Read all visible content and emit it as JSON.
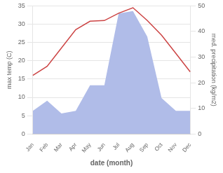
{
  "chart_data": {
    "type": "line",
    "categories": [
      "Jan",
      "Feb",
      "Mar",
      "Apr",
      "May",
      "Jun",
      "Jul",
      "Aug",
      "Sep",
      "Oct",
      "Nov",
      "Dec"
    ],
    "xlabel": "date (month)",
    "ylabel": "max temp (C)",
    "y2label": "med. precipitation (kg/m2)",
    "series": [
      {
        "type": "area",
        "axis": "y2",
        "color": "#b0bce8",
        "values": [
          9.0,
          13.0,
          8.0,
          9.0,
          19.0,
          19.0,
          47.0,
          48.0,
          38.0,
          14.0,
          9.0,
          9.0
        ]
      },
      {
        "type": "line",
        "axis": "y",
        "color": "#cc4444",
        "values": [
          16.0,
          18.5,
          23.5,
          28.5,
          30.8,
          31.0,
          33.0,
          34.5,
          31.0,
          27.0,
          22.0,
          17.0
        ]
      }
    ],
    "ylim": [
      0,
      35
    ],
    "yticks": [
      0,
      5,
      10,
      15,
      20,
      25,
      30,
      35
    ],
    "y2lim": [
      0,
      50
    ],
    "y2ticks": [
      0,
      10,
      20,
      30,
      40,
      50
    ],
    "grid": true
  }
}
